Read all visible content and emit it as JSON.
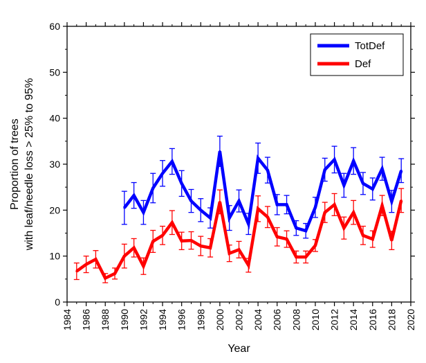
{
  "chart_data": {
    "type": "line",
    "xlabel": "Year",
    "ylabel_lines": [
      "Proportion of trees",
      "with leaf/needle loss > 25% to 95%"
    ],
    "xlim": [
      1984,
      2020
    ],
    "ylim": [
      0,
      60
    ],
    "x_ticks": [
      1984,
      1986,
      1988,
      1990,
      1992,
      1994,
      1996,
      1998,
      2000,
      2002,
      2004,
      2006,
      2008,
      2010,
      2012,
      2014,
      2016,
      2018,
      2020
    ],
    "y_ticks": [
      0,
      10,
      20,
      30,
      40,
      50,
      60
    ],
    "grid": false,
    "legend_position": "top-right",
    "error_bars": true,
    "series": [
      {
        "name": "TotDef",
        "color": "#0000ff",
        "x": [
          1990,
          1991,
          1992,
          1993,
          1994,
          1995,
          1996,
          1997,
          1998,
          1999,
          2000,
          2001,
          2002,
          2003,
          2004,
          2005,
          2006,
          2007,
          2008,
          2009,
          2010,
          2011,
          2012,
          2013,
          2014,
          2015,
          2016,
          2017,
          2018,
          2019
        ],
        "y": [
          20.5,
          23.2,
          19.5,
          24.8,
          28.0,
          30.6,
          25.8,
          22.0,
          20.0,
          18.3,
          32.8,
          18.3,
          22.0,
          17.0,
          31.3,
          28.7,
          21.2,
          21.2,
          16.1,
          15.5,
          20.6,
          28.8,
          31.0,
          25.4,
          30.7,
          25.8,
          24.6,
          29.0,
          21.9,
          28.6
        ],
        "err": [
          3.6,
          2.8,
          2.6,
          3.2,
          2.8,
          2.8,
          2.8,
          2.5,
          2.5,
          2.2,
          3.3,
          2.7,
          2.4,
          2.3,
          3.3,
          2.8,
          2.2,
          2.0,
          1.6,
          1.6,
          2.2,
          2.5,
          2.9,
          2.6,
          2.9,
          2.4,
          2.4,
          2.5,
          2.4,
          2.6
        ]
      },
      {
        "name": "Def",
        "color": "#ff0000",
        "x": [
          1985,
          1986,
          1987,
          1988,
          1989,
          1990,
          1991,
          1992,
          1993,
          1994,
          1995,
          1996,
          1997,
          1998,
          1999,
          2000,
          2001,
          2002,
          2003,
          2004,
          2005,
          2006,
          2007,
          2008,
          2009,
          2010,
          2011,
          2012,
          2013,
          2014,
          2015,
          2016,
          2017,
          2018,
          2019
        ],
        "y": [
          6.7,
          8.2,
          9.3,
          5.2,
          6.2,
          10.0,
          11.8,
          7.8,
          13.2,
          14.5,
          17.3,
          13.3,
          13.4,
          12.2,
          11.8,
          21.8,
          10.6,
          11.4,
          8.0,
          20.3,
          18.5,
          14.2,
          13.7,
          9.8,
          9.8,
          12.3,
          19.5,
          21.2,
          16.1,
          19.5,
          14.5,
          13.7,
          21.0,
          13.4,
          22.1
        ],
        "err": [
          1.8,
          1.8,
          1.9,
          1.0,
          1.2,
          2.6,
          2.0,
          1.8,
          2.4,
          2.0,
          2.6,
          1.9,
          1.9,
          2.1,
          2.0,
          2.6,
          1.8,
          1.8,
          1.5,
          2.8,
          2.3,
          2.0,
          1.8,
          1.3,
          1.3,
          1.3,
          2.2,
          2.4,
          2.4,
          2.6,
          2.0,
          1.8,
          2.2,
          2.0,
          2.6
        ]
      }
    ]
  }
}
